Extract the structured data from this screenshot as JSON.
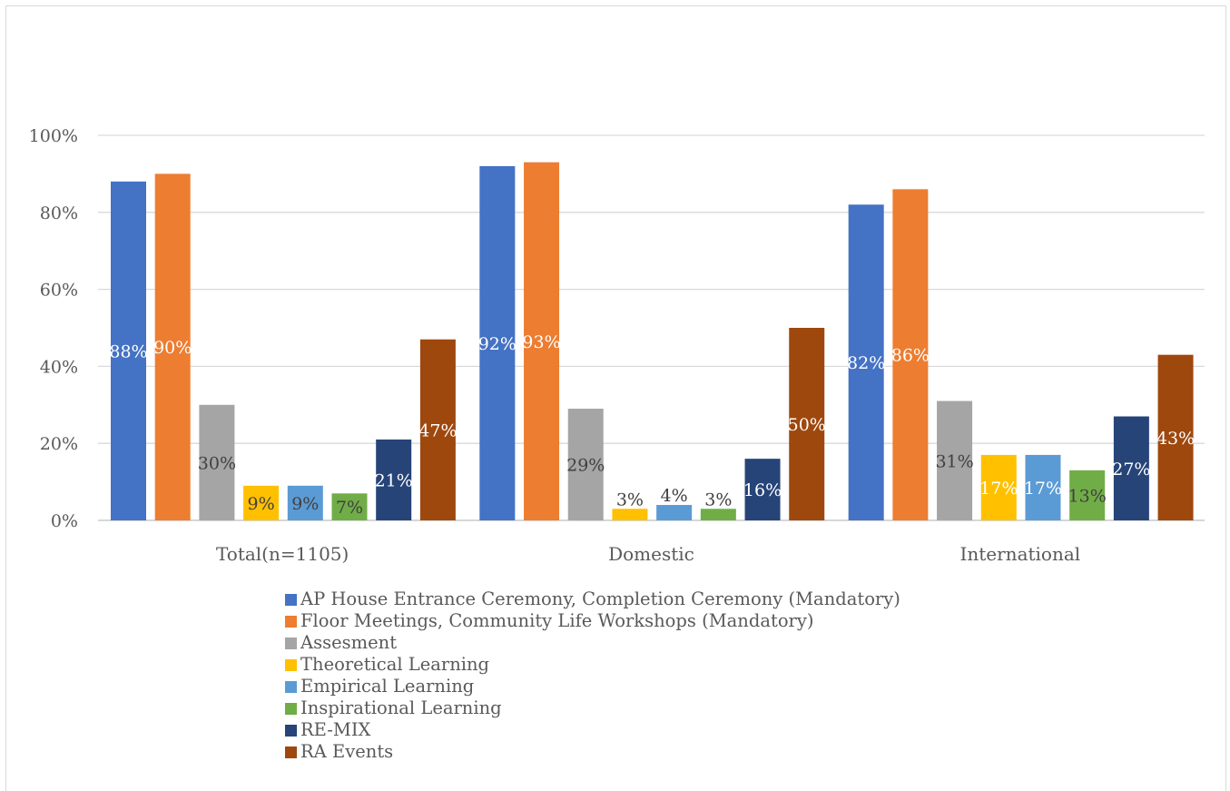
{
  "chart_data": {
    "type": "bar",
    "categories": [
      "Total(n=1105)",
      "Domestic",
      "International"
    ],
    "ylim": [
      0,
      100
    ],
    "yticks": [
      0,
      20,
      40,
      60,
      80,
      100
    ],
    "ytick_labels": [
      "0%",
      "20%",
      "40%",
      "60%",
      "80%",
      "100%"
    ],
    "grid": true,
    "legend_position": "bottom",
    "series": [
      {
        "name": "AP House Entrance Ceremony, Completion Ceremony (Mandatory)",
        "color": "#4472c4",
        "values": [
          88,
          92,
          82
        ],
        "labels": [
          "88%",
          "92%",
          "82%"
        ]
      },
      {
        "name": "Floor Meetings, Community Life Workshops (Mandatory)",
        "color": "#ed7d31",
        "values": [
          90,
          93,
          86
        ],
        "labels": [
          "90%",
          "93%",
          "86%"
        ]
      },
      {
        "name": "Assesment",
        "color": "#a5a5a5",
        "values": [
          30,
          29,
          31
        ],
        "labels": [
          "30%",
          "29%",
          "31%"
        ]
      },
      {
        "name": "Theoretical Learning",
        "color": "#ffc000",
        "values": [
          9,
          3,
          17
        ],
        "labels": [
          "9%",
          "3%",
          "17%"
        ]
      },
      {
        "name": "Empirical Learning",
        "color": "#5b9bd5",
        "values": [
          9,
          4,
          17
        ],
        "labels": [
          "9%",
          "4%",
          "17%"
        ]
      },
      {
        "name": "Inspirational Learning",
        "color": "#70ad47",
        "values": [
          7,
          3,
          13
        ],
        "labels": [
          "7%",
          "3%",
          "13%"
        ]
      },
      {
        "name": "RE-MIX",
        "color": "#264478",
        "values": [
          21,
          16,
          27
        ],
        "labels": [
          "21%",
          "16%",
          "27%"
        ]
      },
      {
        "name": "RA Events",
        "color": "#9e480e",
        "values": [
          47,
          50,
          43
        ],
        "labels": [
          "47%",
          "50%",
          "43%"
        ]
      }
    ]
  }
}
